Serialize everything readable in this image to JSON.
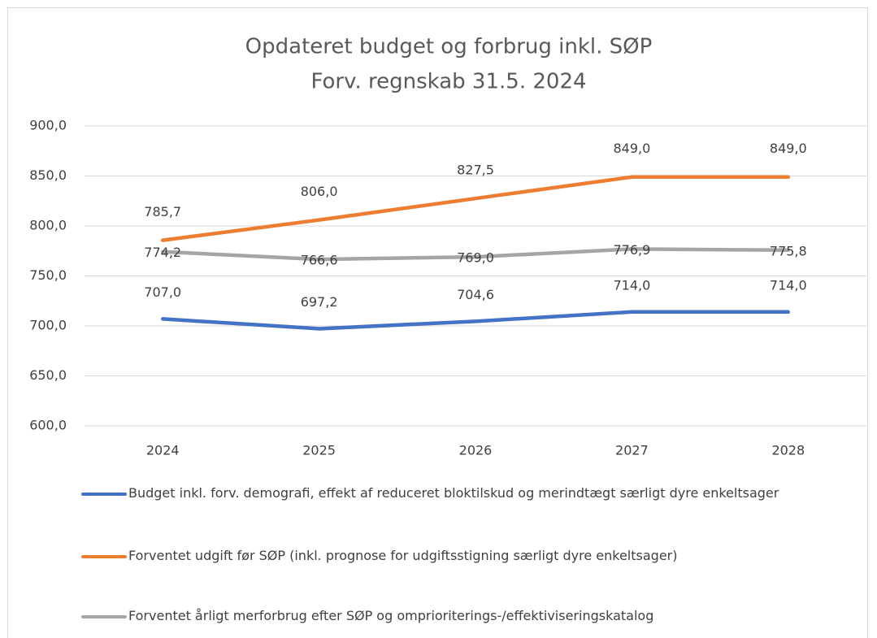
{
  "chart_data": {
    "type": "line",
    "title": "Opdateret budget og forbrug inkl. SØP",
    "subtitle": "Forv. regnskab 31.5. 2024",
    "categories": [
      "2024",
      "2025",
      "2026",
      "2027",
      "2028"
    ],
    "series": [
      {
        "name": "Budget inkl. forv. demografi, effekt af reduceret bloktilskud og merindtægt særligt dyre enkeltsager",
        "color": "#4472c4",
        "values": [
          707.0,
          697.2,
          704.6,
          714.0,
          714.0
        ],
        "value_labels": [
          "707,0",
          "697,2",
          "704,6",
          "714,0",
          "714,0"
        ]
      },
      {
        "name": "Forventet udgift før SØP (inkl. prognose for udgiftsstigning særligt dyre enkeltsager)",
        "color": "#ed7d31",
        "values": [
          785.7,
          806.0,
          827.5,
          849.0,
          849.0
        ],
        "value_labels": [
          "785,7",
          "806,0",
          "827,5",
          "849,0",
          "849,0"
        ]
      },
      {
        "name": "Forventet årligt merforbrug efter SØP og omprioriterings-/effektiviseringskatalog",
        "color": "#a5a5a5",
        "values": [
          774.2,
          766.6,
          769.0,
          776.9,
          775.8
        ],
        "value_labels": [
          "774,2",
          "766,6",
          "769,0",
          "776,9",
          "775,8"
        ]
      }
    ],
    "ylim": [
      600,
      900
    ],
    "yticks": [
      {
        "value": 600,
        "label": "600,0"
      },
      {
        "value": 650,
        "label": "650,0"
      },
      {
        "value": 700,
        "label": "700,0"
      },
      {
        "value": 750,
        "label": "750,0"
      },
      {
        "value": 800,
        "label": "800,0"
      },
      {
        "value": 850,
        "label": "850,0"
      },
      {
        "value": 900,
        "label": "900,0"
      }
    ],
    "grid": true
  }
}
